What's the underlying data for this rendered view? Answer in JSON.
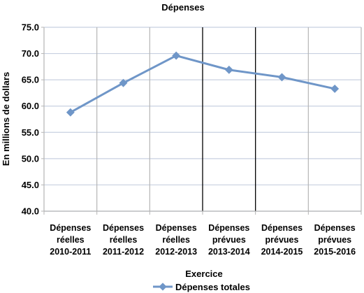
{
  "chart_data": {
    "type": "line",
    "title": "Dépenses",
    "xlabel": "Exercice",
    "ylabel": "En millions de dollars",
    "ylim": [
      40.0,
      75.0
    ],
    "y_ticks": [
      "40.0",
      "45.0",
      "50.0",
      "55.0",
      "60.0",
      "65.0",
      "70.0",
      "75.0"
    ],
    "categories": [
      [
        "Dépenses",
        "réelles",
        "2010-2011"
      ],
      [
        "Dépenses",
        "réelles",
        "2011-2012"
      ],
      [
        "Dépenses",
        "réelles",
        "2012-2013"
      ],
      [
        "Dépenses",
        "prévues",
        "2013-2014"
      ],
      [
        "Dépenses",
        "prévues",
        "2014-2015"
      ],
      [
        "Dépenses",
        "prévues",
        "2015-2016"
      ]
    ],
    "series": [
      {
        "name": "Dépenses totales",
        "values": [
          58.8,
          64.4,
          69.6,
          66.9,
          65.5,
          63.3
        ],
        "color": "#6f96c8"
      }
    ],
    "grid": true,
    "legend_position": "bottom",
    "colors": {
      "series": "#6f96c8",
      "grid": "#b5b5b5",
      "gridline": "#c8d0e0",
      "divider": "#000000"
    }
  }
}
